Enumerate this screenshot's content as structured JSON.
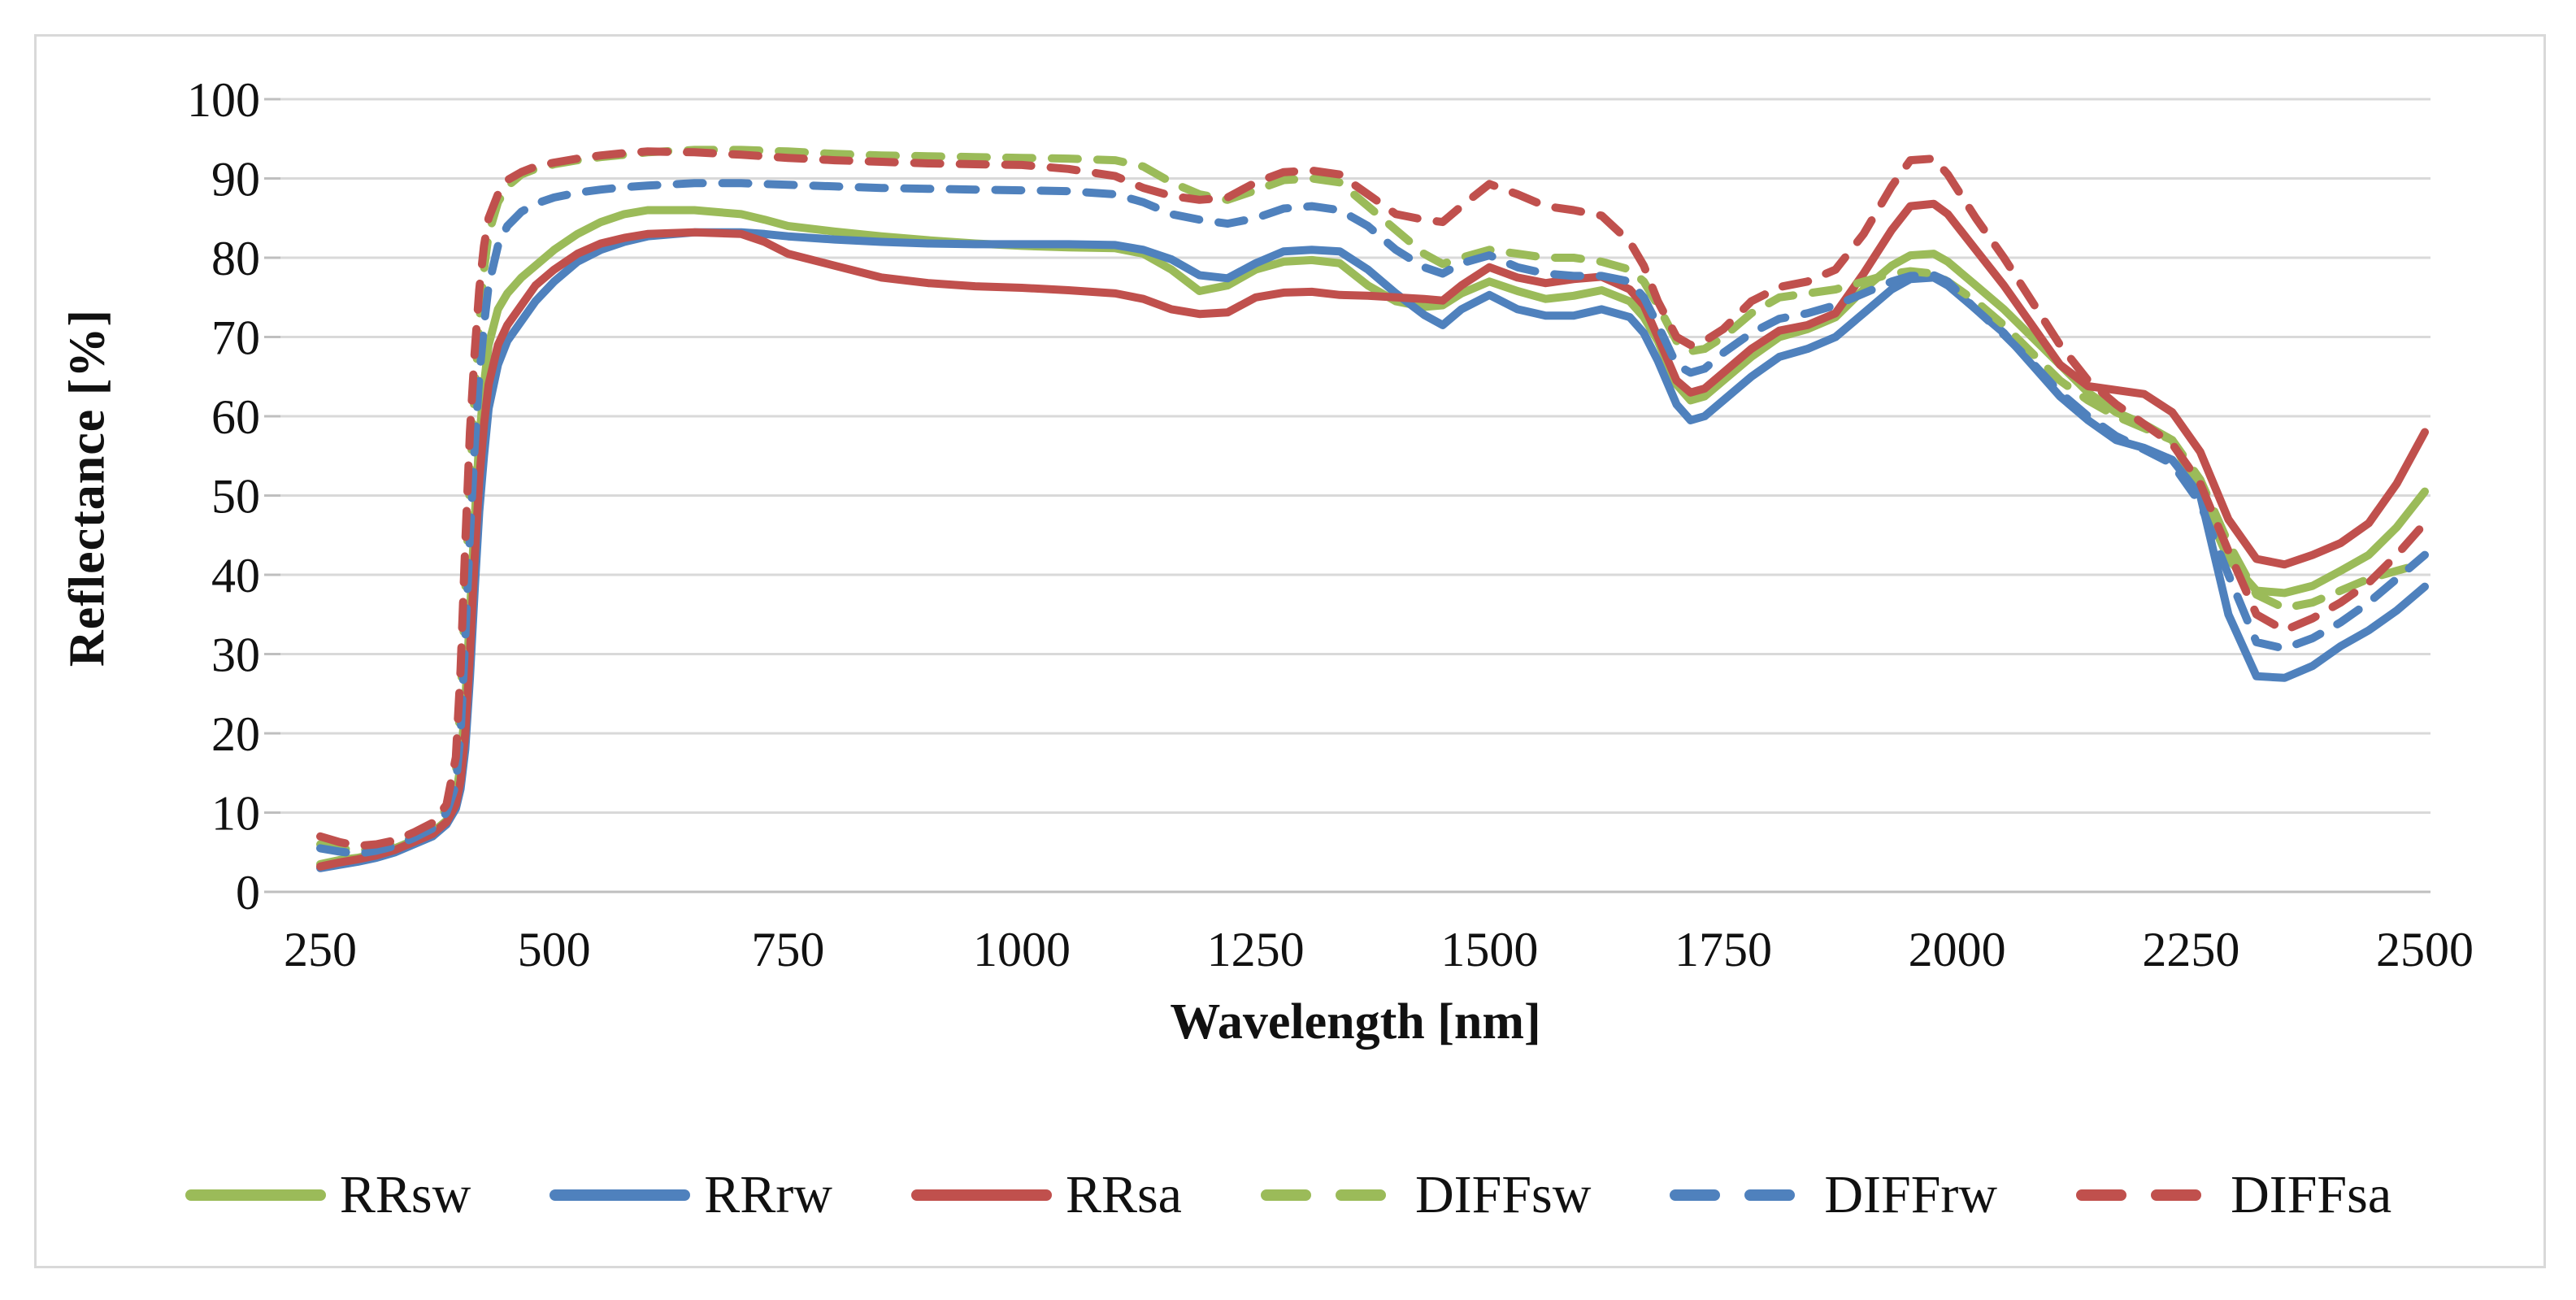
{
  "figure": {
    "background_color": "#FFFFFF",
    "border_color": "#D9D9D9"
  },
  "chart_data": {
    "type": "line",
    "title": "",
    "xlabel": "Wavelength [nm]",
    "ylabel": "Reflectance [%]",
    "xlim": [
      250,
      2500
    ],
    "ylim": [
      0,
      100
    ],
    "x_ticks": [
      250,
      500,
      750,
      1000,
      1250,
      1500,
      1750,
      2000,
      2250,
      2500
    ],
    "y_ticks": [
      0,
      10,
      20,
      30,
      40,
      50,
      60,
      70,
      80,
      90,
      100
    ],
    "grid": "horizontal",
    "gridline_color": "#D9D9D9",
    "axis_line_color": "#BFBFBF",
    "tick_label_color": "#111111",
    "legend_position": "bottom",
    "wavelengths": [
      250,
      270,
      290,
      310,
      330,
      350,
      370,
      385,
      395,
      400,
      405,
      410,
      415,
      420,
      425,
      430,
      440,
      450,
      465,
      480,
      500,
      525,
      550,
      575,
      600,
      650,
      700,
      725,
      750,
      800,
      850,
      900,
      950,
      1000,
      1050,
      1100,
      1130,
      1160,
      1190,
      1220,
      1250,
      1280,
      1310,
      1340,
      1370,
      1400,
      1430,
      1450,
      1470,
      1500,
      1530,
      1560,
      1590,
      1620,
      1650,
      1665,
      1680,
      1700,
      1715,
      1730,
      1750,
      1780,
      1810,
      1840,
      1870,
      1900,
      1930,
      1950,
      1975,
      1990,
      2020,
      2050,
      2080,
      2110,
      2140,
      2170,
      2200,
      2230,
      2260,
      2290,
      2320,
      2350,
      2380,
      2410,
      2440,
      2470,
      2500
    ],
    "series": [
      {
        "name": "RRsw",
        "color": "#9BBB59",
        "style": "solid",
        "values": [
          3.5,
          4,
          4.3,
          4.8,
          5.5,
          6.5,
          7.5,
          9,
          12,
          16,
          24,
          35,
          47,
          57,
          64,
          69,
          73.5,
          75.5,
          77.5,
          79,
          81,
          83,
          84.5,
          85.5,
          86,
          86,
          85.5,
          84.8,
          84,
          83.3,
          82.7,
          82.2,
          81.8,
          81.5,
          81.3,
          81.2,
          80.5,
          78.5,
          75.8,
          76.5,
          78.5,
          79.5,
          79.7,
          79.3,
          76.5,
          74.5,
          73.8,
          74,
          75.5,
          77,
          75.8,
          74.8,
          75.2,
          75.9,
          74.5,
          72.5,
          69.5,
          64,
          62,
          62.5,
          64.5,
          67.5,
          70,
          71,
          72.5,
          76,
          79,
          80.3,
          80.5,
          79.5,
          76.5,
          73.5,
          70,
          66.5,
          63,
          60.5,
          59,
          57,
          50,
          42,
          38,
          37.7,
          38.6,
          40.5,
          42.5,
          46,
          50.5
        ]
      },
      {
        "name": "RRrw",
        "color": "#4F81BD",
        "style": "solid",
        "values": [
          3,
          3.4,
          3.8,
          4.3,
          5,
          6,
          7,
          8.5,
          10.5,
          13,
          18,
          27,
          38,
          48,
          55,
          61,
          66.5,
          69.5,
          72,
          74.5,
          77,
          79.5,
          81,
          82,
          82.7,
          83.2,
          83.2,
          83,
          82.7,
          82.3,
          82,
          81.8,
          81.7,
          81.7,
          81.7,
          81.6,
          81,
          79.8,
          77.8,
          77.4,
          79.3,
          80.8,
          81,
          80.8,
          78.5,
          75.5,
          72.8,
          71.5,
          73.5,
          75.3,
          73.5,
          72.7,
          72.7,
          73.5,
          72.5,
          70.5,
          67,
          61.5,
          59.5,
          60,
          62,
          65,
          67.5,
          68.5,
          70,
          73,
          76,
          77.3,
          77.5,
          76.5,
          73.5,
          70.5,
          66.5,
          62.5,
          59.5,
          57,
          56,
          54.5,
          50,
          35,
          27.2,
          27,
          28.5,
          31,
          33,
          35.5,
          38.5
        ]
      },
      {
        "name": "RRsa",
        "color": "#C0504D",
        "style": "solid",
        "values": [
          3.2,
          3.7,
          4.1,
          4.6,
          5.3,
          6.3,
          7.3,
          8.8,
          11,
          14,
          20,
          30,
          42,
          52,
          59,
          64,
          69,
          71.5,
          74,
          76.5,
          78.5,
          80.5,
          81.8,
          82.5,
          83,
          83.2,
          83,
          82,
          80.5,
          79,
          77.5,
          76.8,
          76.4,
          76.2,
          75.9,
          75.5,
          74.8,
          73.5,
          72.9,
          73.1,
          75,
          75.6,
          75.7,
          75.3,
          75.2,
          75,
          74.8,
          74.6,
          76.5,
          78.8,
          77.5,
          76.8,
          77.3,
          77.6,
          76,
          74,
          70,
          64.5,
          63,
          63.5,
          65.5,
          68.5,
          70.8,
          71.5,
          73,
          78,
          83.5,
          86.5,
          86.8,
          85.5,
          81,
          76.5,
          71.5,
          66.5,
          63.8,
          63.3,
          62.8,
          60.5,
          55.5,
          47,
          42,
          41.3,
          42.5,
          44,
          46.5,
          51.5,
          58
        ]
      },
      {
        "name": "DIFFsw",
        "color": "#9BBB59",
        "style": "dashed",
        "values": [
          6,
          5.5,
          5.2,
          5.5,
          6,
          7,
          8.2,
          10.5,
          15,
          24,
          38,
          52,
          63,
          72,
          78.5,
          83,
          87,
          89,
          90.5,
          91.2,
          91.8,
          92.3,
          92.7,
          93,
          93.3,
          93.6,
          93.6,
          93.5,
          93.4,
          93.1,
          92.9,
          92.8,
          92.7,
          92.6,
          92.5,
          92.3,
          91.5,
          89.5,
          88,
          87.3,
          88.5,
          89.8,
          90,
          89.5,
          86.5,
          83.5,
          80.5,
          79.2,
          80,
          81,
          80.5,
          80,
          80,
          79.5,
          78.5,
          77,
          74,
          69.5,
          68.2,
          68.5,
          70,
          73,
          75,
          75.5,
          76,
          77,
          78,
          78.3,
          78,
          77,
          74.5,
          71.5,
          68,
          64.5,
          62,
          60,
          58.5,
          57,
          52,
          44,
          37.5,
          35.8,
          36.5,
          38,
          39.5,
          40.5,
          41.5
        ]
      },
      {
        "name": "DIFFrw",
        "color": "#4F81BD",
        "style": "dashed",
        "values": [
          5.5,
          5.1,
          4.8,
          5.2,
          5.8,
          6.8,
          8,
          10,
          13.5,
          20,
          32,
          45,
          56,
          65,
          71.5,
          76.5,
          81.5,
          84,
          85.8,
          86.8,
          87.6,
          88.2,
          88.6,
          88.9,
          89.1,
          89.4,
          89.4,
          89.3,
          89.2,
          89,
          88.8,
          88.7,
          88.6,
          88.5,
          88.4,
          88,
          87,
          85.5,
          84.8,
          84.3,
          85,
          86.2,
          86.5,
          86,
          84,
          81,
          78.8,
          78,
          79.3,
          80.3,
          78.8,
          78,
          77.7,
          77.7,
          77,
          75,
          71.5,
          66.5,
          65.5,
          66,
          68,
          70.5,
          72.3,
          73,
          74,
          75.5,
          77,
          77.7,
          77.8,
          77,
          73.5,
          70.3,
          66.8,
          63,
          60,
          57.5,
          55.8,
          54,
          49,
          40,
          31.5,
          30.7,
          32,
          34,
          36.5,
          39.5,
          42.5
        ]
      },
      {
        "name": "DIFFsa",
        "color": "#C0504D",
        "style": "dashed",
        "values": [
          7,
          6.3,
          5.8,
          6,
          6.5,
          7.5,
          8.7,
          11,
          17,
          28,
          44,
          58,
          68,
          76,
          81.5,
          85,
          88,
          89.8,
          90.8,
          91.5,
          92,
          92.5,
          92.9,
          93.2,
          93.4,
          93.3,
          93,
          92.8,
          92.6,
          92.3,
          92.1,
          91.9,
          91.8,
          91.7,
          91.2,
          90.3,
          88.8,
          87.8,
          87.3,
          87.6,
          89.5,
          90.8,
          91,
          90.5,
          88,
          85.5,
          84.8,
          84.5,
          86.5,
          89.3,
          88,
          86.5,
          86,
          85.3,
          82,
          79,
          74.5,
          70,
          69,
          69.5,
          71,
          74.5,
          76.3,
          77,
          78.5,
          83,
          89,
          92.3,
          92.5,
          90.5,
          85,
          80,
          74.5,
          69,
          64.5,
          61.5,
          59,
          56.5,
          51.5,
          43,
          35,
          33,
          34.5,
          36.5,
          39,
          42.5,
          46.5
        ]
      }
    ]
  }
}
